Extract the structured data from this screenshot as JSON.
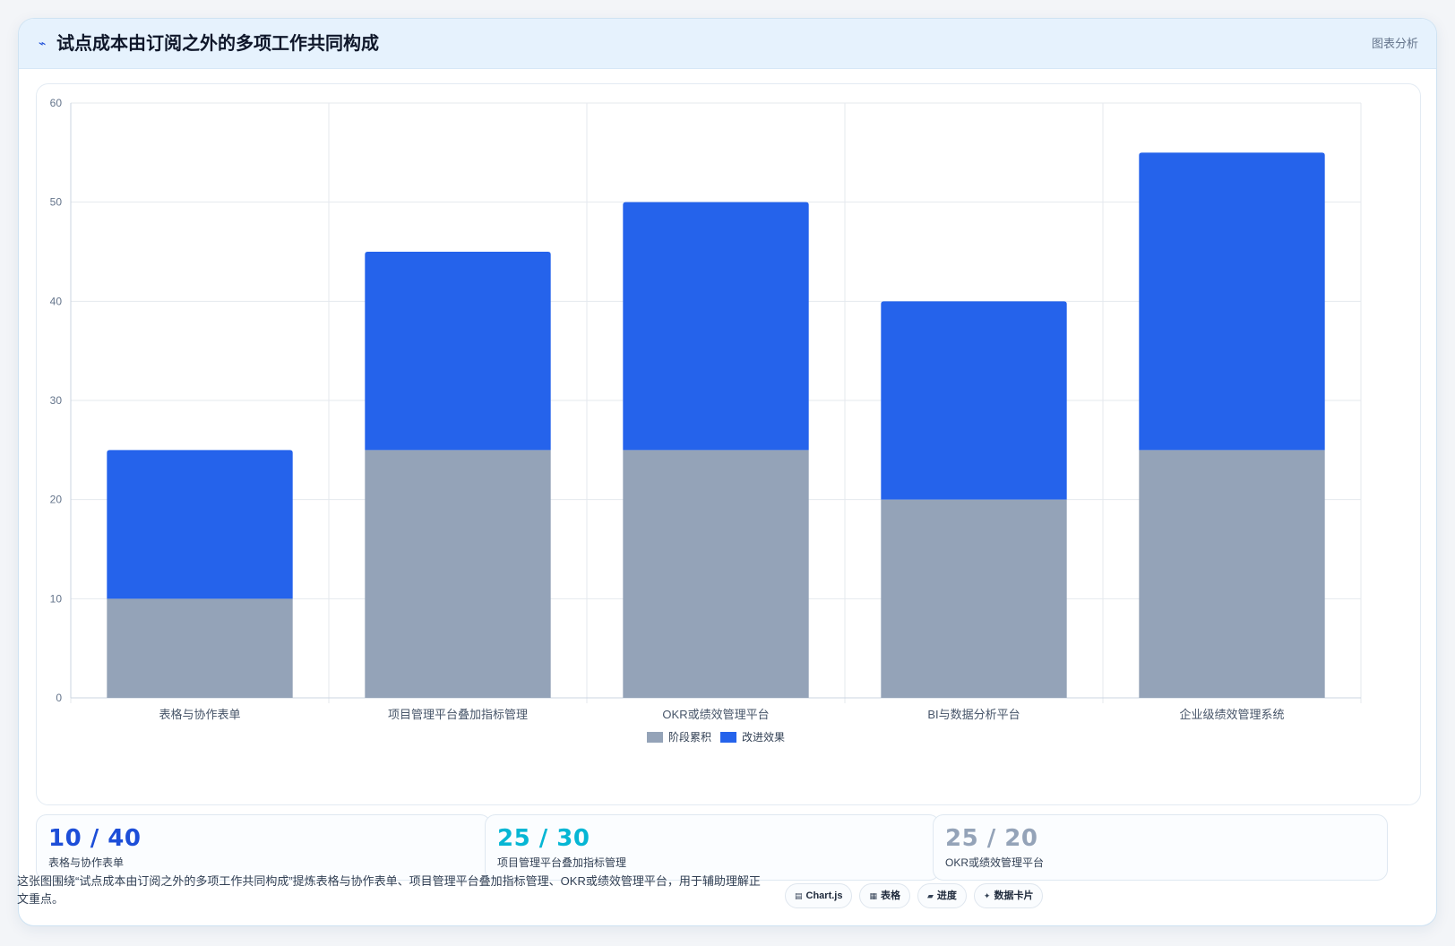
{
  "header": {
    "icon": "trend-icon",
    "title": "试点成本由订阅之外的多项工作共同构成",
    "right_label": "图表分析"
  },
  "chart_data": {
    "type": "bar",
    "stacked": true,
    "categories": [
      "表格与协作表单",
      "项目管理平台叠加指标管理",
      "OKR或绩效管理平台",
      "BI与数据分析平台",
      "企业级绩效管理系统"
    ],
    "series": [
      {
        "name": "阶段累积",
        "color": "#94a3b8",
        "values": [
          10,
          25,
          25,
          20,
          25
        ]
      },
      {
        "name": "改进效果",
        "color": "#2563eb",
        "values": [
          15,
          20,
          25,
          20,
          30
        ]
      }
    ],
    "ylim": [
      0,
      60
    ],
    "yticks": [
      0,
      10,
      20,
      30,
      40,
      50,
      60
    ],
    "grid": true,
    "legend": "bottom"
  },
  "stats": [
    {
      "value": "10 / 40",
      "label": "表格与协作表单",
      "color": "#1d4ed8"
    },
    {
      "value": "25 / 30",
      "label": "项目管理平台叠加指标管理",
      "color": "#06b6d4"
    },
    {
      "value": "25 / 20",
      "label": "OKR或绩效管理平台",
      "color": "#94a3b8"
    }
  ],
  "description": "这张图围绕“试点成本由订阅之外的多项工作共同构成”提炼表格与协作表单、项目管理平台叠加指标管理、OKR或绩效管理平台，用于辅助理解正文重点。",
  "tags": [
    {
      "icon": "chart-icon",
      "glyph": "▤",
      "label": "Chart.js"
    },
    {
      "icon": "table-icon",
      "glyph": "▦",
      "label": "表格"
    },
    {
      "icon": "progress-icon",
      "glyph": "▰",
      "label": "进度"
    },
    {
      "icon": "sparkle-icon",
      "glyph": "✦",
      "label": "数据卡片"
    }
  ]
}
